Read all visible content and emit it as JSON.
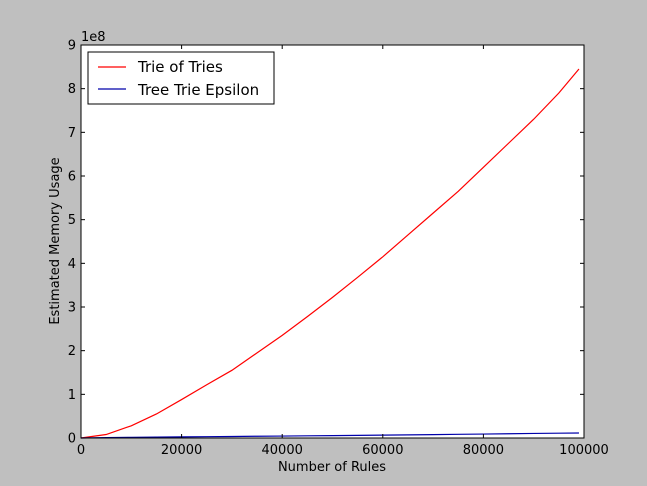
{
  "colors": {
    "figure_background": "#bfbfbf",
    "plot_background": "#ffffff",
    "axis": "#000000"
  },
  "chart_data": {
    "type": "line",
    "title": "",
    "xlabel": "Number of Rules",
    "ylabel": "Estimated Memory Usage",
    "y_offset_label": "1e8",
    "xlim": [
      0,
      100000
    ],
    "ylim": [
      0,
      9
    ],
    "y_multiplier": 100000000,
    "x_ticks": [
      0,
      20000,
      40000,
      60000,
      80000,
      100000
    ],
    "x_tick_labels": [
      "0",
      "20000",
      "40000",
      "60000",
      "80000",
      "100000"
    ],
    "y_ticks": [
      0,
      1,
      2,
      3,
      4,
      5,
      6,
      7,
      8,
      9
    ],
    "y_tick_labels": [
      "0",
      "1",
      "2",
      "3",
      "4",
      "5",
      "6",
      "7",
      "8",
      "9"
    ],
    "grid": false,
    "legend_placement": "top-left",
    "x": [
      0,
      5000,
      10000,
      15000,
      20000,
      25000,
      30000,
      35000,
      40000,
      45000,
      50000,
      55000,
      60000,
      65000,
      70000,
      75000,
      80000,
      85000,
      90000,
      95000,
      99000
    ],
    "series": [
      {
        "name": "Trie of Tries",
        "color": "#ff0000",
        "values": [
          0.0,
          0.08,
          0.28,
          0.55,
          0.88,
          1.22,
          1.55,
          1.95,
          2.35,
          2.78,
          3.22,
          3.68,
          4.15,
          4.65,
          5.15,
          5.65,
          6.2,
          6.75,
          7.3,
          7.9,
          8.45
        ]
      },
      {
        "name": "Tree Trie Epsilon",
        "color": "#0000aa",
        "values": [
          0.0,
          0.01,
          0.015,
          0.02,
          0.025,
          0.03,
          0.035,
          0.04,
          0.045,
          0.05,
          0.055,
          0.06,
          0.066,
          0.072,
          0.078,
          0.084,
          0.09,
          0.097,
          0.104,
          0.11,
          0.115
        ]
      }
    ]
  }
}
